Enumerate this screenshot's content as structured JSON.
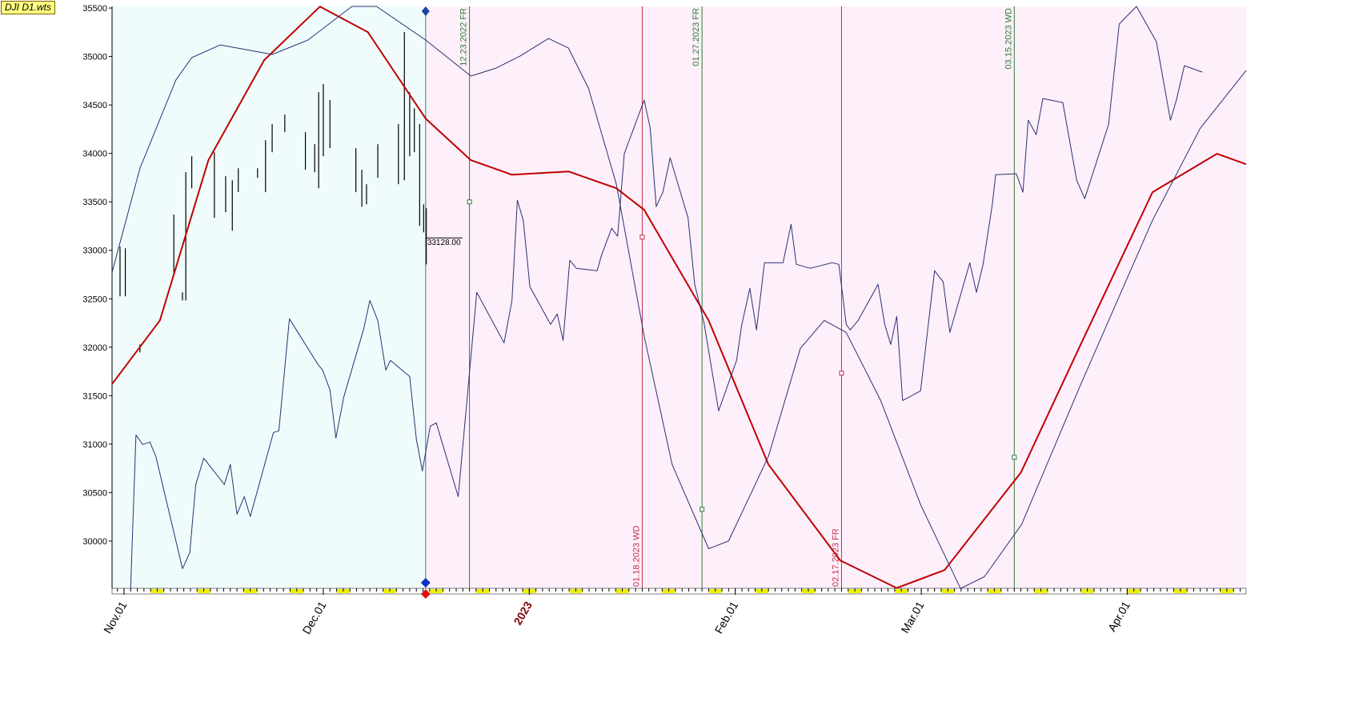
{
  "chart_data": {
    "type": "line",
    "title": "DJI D1.wts",
    "xlim": [
      -1.8,
      168.9
    ],
    "ylim": [
      29512,
      35517
    ],
    "xticks": [
      {
        "value": 0,
        "label": "Nov.01"
      },
      {
        "value": 30,
        "label": "Dec.01"
      },
      {
        "value": 61,
        "label": "2023"
      },
      {
        "value": 92,
        "label": "Feb.01"
      },
      {
        "value": 120,
        "label": "Mar.01"
      },
      {
        "value": 151,
        "label": "Apr.01"
      }
    ],
    "yticks": [
      30000,
      30500,
      31000,
      31500,
      32000,
      32500,
      33000,
      33500,
      34000,
      34500,
      35000,
      35500
    ],
    "series": [
      {
        "color": "#c00000",
        "width": 2,
        "x": [
          -1.8,
          5.4,
          12.7,
          21.1,
          29.5,
          36.7,
          45.4,
          52.2,
          58.4,
          66.9,
          74.1,
          78.3,
          88,
          97,
          107.8,
          116.3,
          123.5,
          135,
          144,
          154.8,
          164.5,
          168.9
        ],
        "values": [
          31620,
          32277,
          33930,
          34963,
          35515,
          35252,
          34360,
          33930,
          33780,
          33814,
          33640,
          33417,
          32277,
          30790,
          29800,
          29515,
          29700,
          30707,
          32029,
          33600,
          33996,
          33888
        ]
      },
      {
        "color": "#2b3070",
        "width": 1,
        "x": [
          -1.8,
          2.4,
          7.8,
          10.2,
          14.5,
          22.3,
          27.7,
          34.3,
          38.0,
          45.4,
          52.2,
          56.0,
          59.6,
          63.9,
          66.9,
          69.9,
          74.1,
          78.3,
          82.5,
          88.0,
          91.0,
          97.0,
          101.8,
          105.4,
          108.7,
          113.9,
          119.9,
          125.9,
          129.5,
          135.1,
          144.0,
          154.8,
          162.0,
          168.9
        ],
        "values": [
          32773,
          33847,
          34756,
          34988,
          35120,
          35021,
          35170,
          35517,
          35517,
          35170,
          34798,
          34880,
          35004,
          35186,
          35087,
          34674,
          33682,
          32112,
          30790,
          29921,
          30000,
          30873,
          31988,
          32277,
          32153,
          31450,
          30376,
          29510,
          29632,
          30170,
          31616,
          33310,
          34260,
          34855
        ]
      },
      {
        "color": "#2b3070",
        "width": 1,
        "x": [
          1.0,
          1.8,
          2.8,
          3.9,
          4.8,
          8.8,
          9.9,
          10.8,
          12.0,
          15.1,
          16.0,
          17.0,
          18.1,
          19.0,
          22.5,
          23.3,
          24.9,
          29.2,
          29.9,
          31.0,
          31.9,
          33.1,
          36.1,
          37.0,
          38.2,
          39.4,
          40.1,
          43.0,
          44.0,
          44.9,
          46.1,
          47.0,
          50.3,
          51.4,
          53.1,
          57.2,
          58.4,
          59.2,
          60.1,
          61.1,
          64.2,
          65.2,
          66.1,
          67.1,
          68.1,
          71.2,
          71.9,
          73.4,
          74.3,
          75.3,
          78.3,
          79.2,
          80.1,
          81.1,
          82.2,
          84.9,
          85.9,
          87.3,
          89.5,
          92.2,
          93.0,
          94.2,
          95.2,
          96.4,
          99.2,
          100.4,
          101.2,
          103.3,
          106.6,
          107.6,
          108.7,
          109.3,
          110.5,
          113.5,
          114.5,
          115.4,
          116.3,
          117.2,
          119.9,
          122.0,
          123.3,
          124.3,
          127.3,
          128.3,
          129.3,
          130.7,
          131.2,
          134.3,
          135.3,
          136.1,
          137.3,
          138.3,
          141.3,
          143.4,
          144.6,
          148.2,
          149.8,
          152.4,
          155.4,
          157.5,
          158.4,
          159.6,
          162.3
        ],
        "values": [
          29510,
          31095,
          30996,
          31021,
          30872,
          29715,
          29880,
          30583,
          30855,
          30583,
          30790,
          30277,
          30459,
          30252,
          31120,
          31137,
          32293,
          31822,
          31764,
          31558,
          31062,
          31492,
          32194,
          32483,
          32277,
          31764,
          31864,
          31698,
          31053,
          30723,
          31186,
          31219,
          30459,
          31285,
          32566,
          32045,
          32483,
          33517,
          33310,
          32624,
          32236,
          32343,
          32070,
          32897,
          32814,
          32789,
          32955,
          33227,
          33145,
          33996,
          34550,
          34260,
          33450,
          33600,
          33955,
          33335,
          32649,
          32252,
          31343,
          31864,
          32236,
          32607,
          32178,
          32872,
          32872,
          33269,
          32855,
          32814,
          32872,
          32855,
          32236,
          32178,
          32277,
          32649,
          32236,
          32029,
          32318,
          31450,
          31550,
          32789,
          32674,
          32153,
          32872,
          32566,
          32855,
          33475,
          33781,
          33790,
          33600,
          34343,
          34194,
          34566,
          34525,
          33723,
          33533,
          34302,
          35335,
          35517,
          35153,
          34343,
          34550,
          34905,
          34839
        ]
      }
    ],
    "bars": {
      "x": [
        -0.6,
        0.2,
        2.4,
        7.5,
        8.8,
        9.3,
        10.2,
        13.6,
        15.3,
        16.3,
        17.2,
        20.1,
        21.3,
        22.3,
        24.2,
        27.3,
        28.7,
        29.3,
        30.0,
        31.0,
        34.9,
        35.8,
        36.5,
        38.2,
        41.3,
        42.2,
        43.0,
        43.7,
        44.5,
        45.1,
        45.5
      ],
      "high": [
        33037,
        33021,
        32029,
        33368,
        32566,
        33806,
        33971,
        34012,
        33765,
        33723,
        33847,
        33847,
        34136,
        34302,
        34401,
        34219,
        34095,
        34632,
        34715,
        34550,
        34054,
        33831,
        33682,
        34095,
        34302,
        35252,
        34632,
        34467,
        34302,
        33475,
        33434
      ],
      "low": [
        32525,
        32525,
        31946,
        32773,
        32483,
        32483,
        33640,
        33335,
        33393,
        33203,
        33600,
        33748,
        33600,
        34012,
        34219,
        33831,
        33806,
        33640,
        33971,
        34054,
        33600,
        33450,
        33475,
        33748,
        33682,
        33723,
        33971,
        34012,
        33252,
        33186,
        32855
      ]
    },
    "current": {
      "x": 45.4,
      "value": 33128,
      "label": "33128.00"
    },
    "annotations": [
      {
        "x": 52,
        "label": "12.23.2022 FR",
        "color": "#2e7d32",
        "marker": 33500
      },
      {
        "x": 78,
        "label": "01.18.2023 WD",
        "color": "#c0304a",
        "marker": 33136
      },
      {
        "x": 87,
        "label": "01.27.2023 FR",
        "color": "#2e7d32",
        "marker": 30327
      },
      {
        "x": 108,
        "label": "02.17.2023 FR",
        "color": "#c0304a",
        "marker": 31732
      },
      {
        "x": 134,
        "label": "03.15.2023 WD",
        "color": "#2e7d32",
        "marker": 30864
      }
    ]
  }
}
